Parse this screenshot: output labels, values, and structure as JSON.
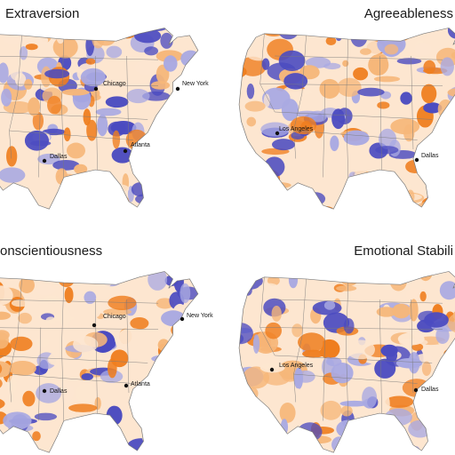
{
  "colors": {
    "high": "#ef7e1f",
    "mid_high": "#f6b77a",
    "light": "#fde6d0",
    "mid_low": "#a9a9e2",
    "low": "#4b4bc0",
    "border": "#7a7a7a",
    "background": "#ffffff"
  },
  "panels": [
    {
      "title": "Extraversion",
      "cities": [
        "Chicago",
        "New York",
        "Atlanta",
        "Dallas"
      ]
    },
    {
      "title": "Agreeableness",
      "cities": [
        "Los Angeles",
        "Dallas"
      ]
    },
    {
      "title": "onscientiousness",
      "cities": [
        "Chicago",
        "New York",
        "Atlanta",
        "Dallas"
      ]
    },
    {
      "title": "Emotional Stabili",
      "cities": [
        "Los Angeles",
        "Dallas"
      ]
    }
  ]
}
